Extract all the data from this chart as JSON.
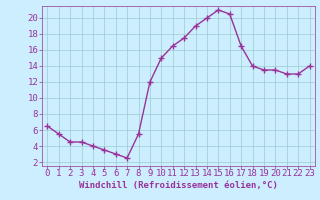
{
  "x": [
    0,
    1,
    2,
    3,
    4,
    5,
    6,
    7,
    8,
    9,
    10,
    11,
    12,
    13,
    14,
    15,
    16,
    17,
    18,
    19,
    20,
    21,
    22,
    23
  ],
  "y": [
    6.5,
    5.5,
    4.5,
    4.5,
    4.0,
    3.5,
    3.0,
    2.5,
    5.5,
    12.0,
    15.0,
    16.5,
    17.5,
    19.0,
    20.0,
    21.0,
    20.5,
    16.5,
    14.0,
    13.5,
    13.5,
    13.0,
    13.0,
    14.0
  ],
  "line_color": "#993399",
  "marker": "+",
  "marker_size": 4,
  "marker_lw": 1.0,
  "bg_color": "#cceeff",
  "grid_color": "#99cccc",
  "xlabel": "Windchill (Refroidissement éolien,°C)",
  "xlabel_color": "#993399",
  "tick_color": "#993399",
  "label_color": "#993399",
  "xlim": [
    -0.5,
    23.5
  ],
  "ylim": [
    1.5,
    21.5
  ],
  "yticks": [
    2,
    4,
    6,
    8,
    10,
    12,
    14,
    16,
    18,
    20
  ],
  "xticks": [
    0,
    1,
    2,
    3,
    4,
    5,
    6,
    7,
    8,
    9,
    10,
    11,
    12,
    13,
    14,
    15,
    16,
    17,
    18,
    19,
    20,
    21,
    22,
    23
  ],
  "font_size": 6.5,
  "xlabel_font_size": 6.5,
  "line_width": 1.0
}
